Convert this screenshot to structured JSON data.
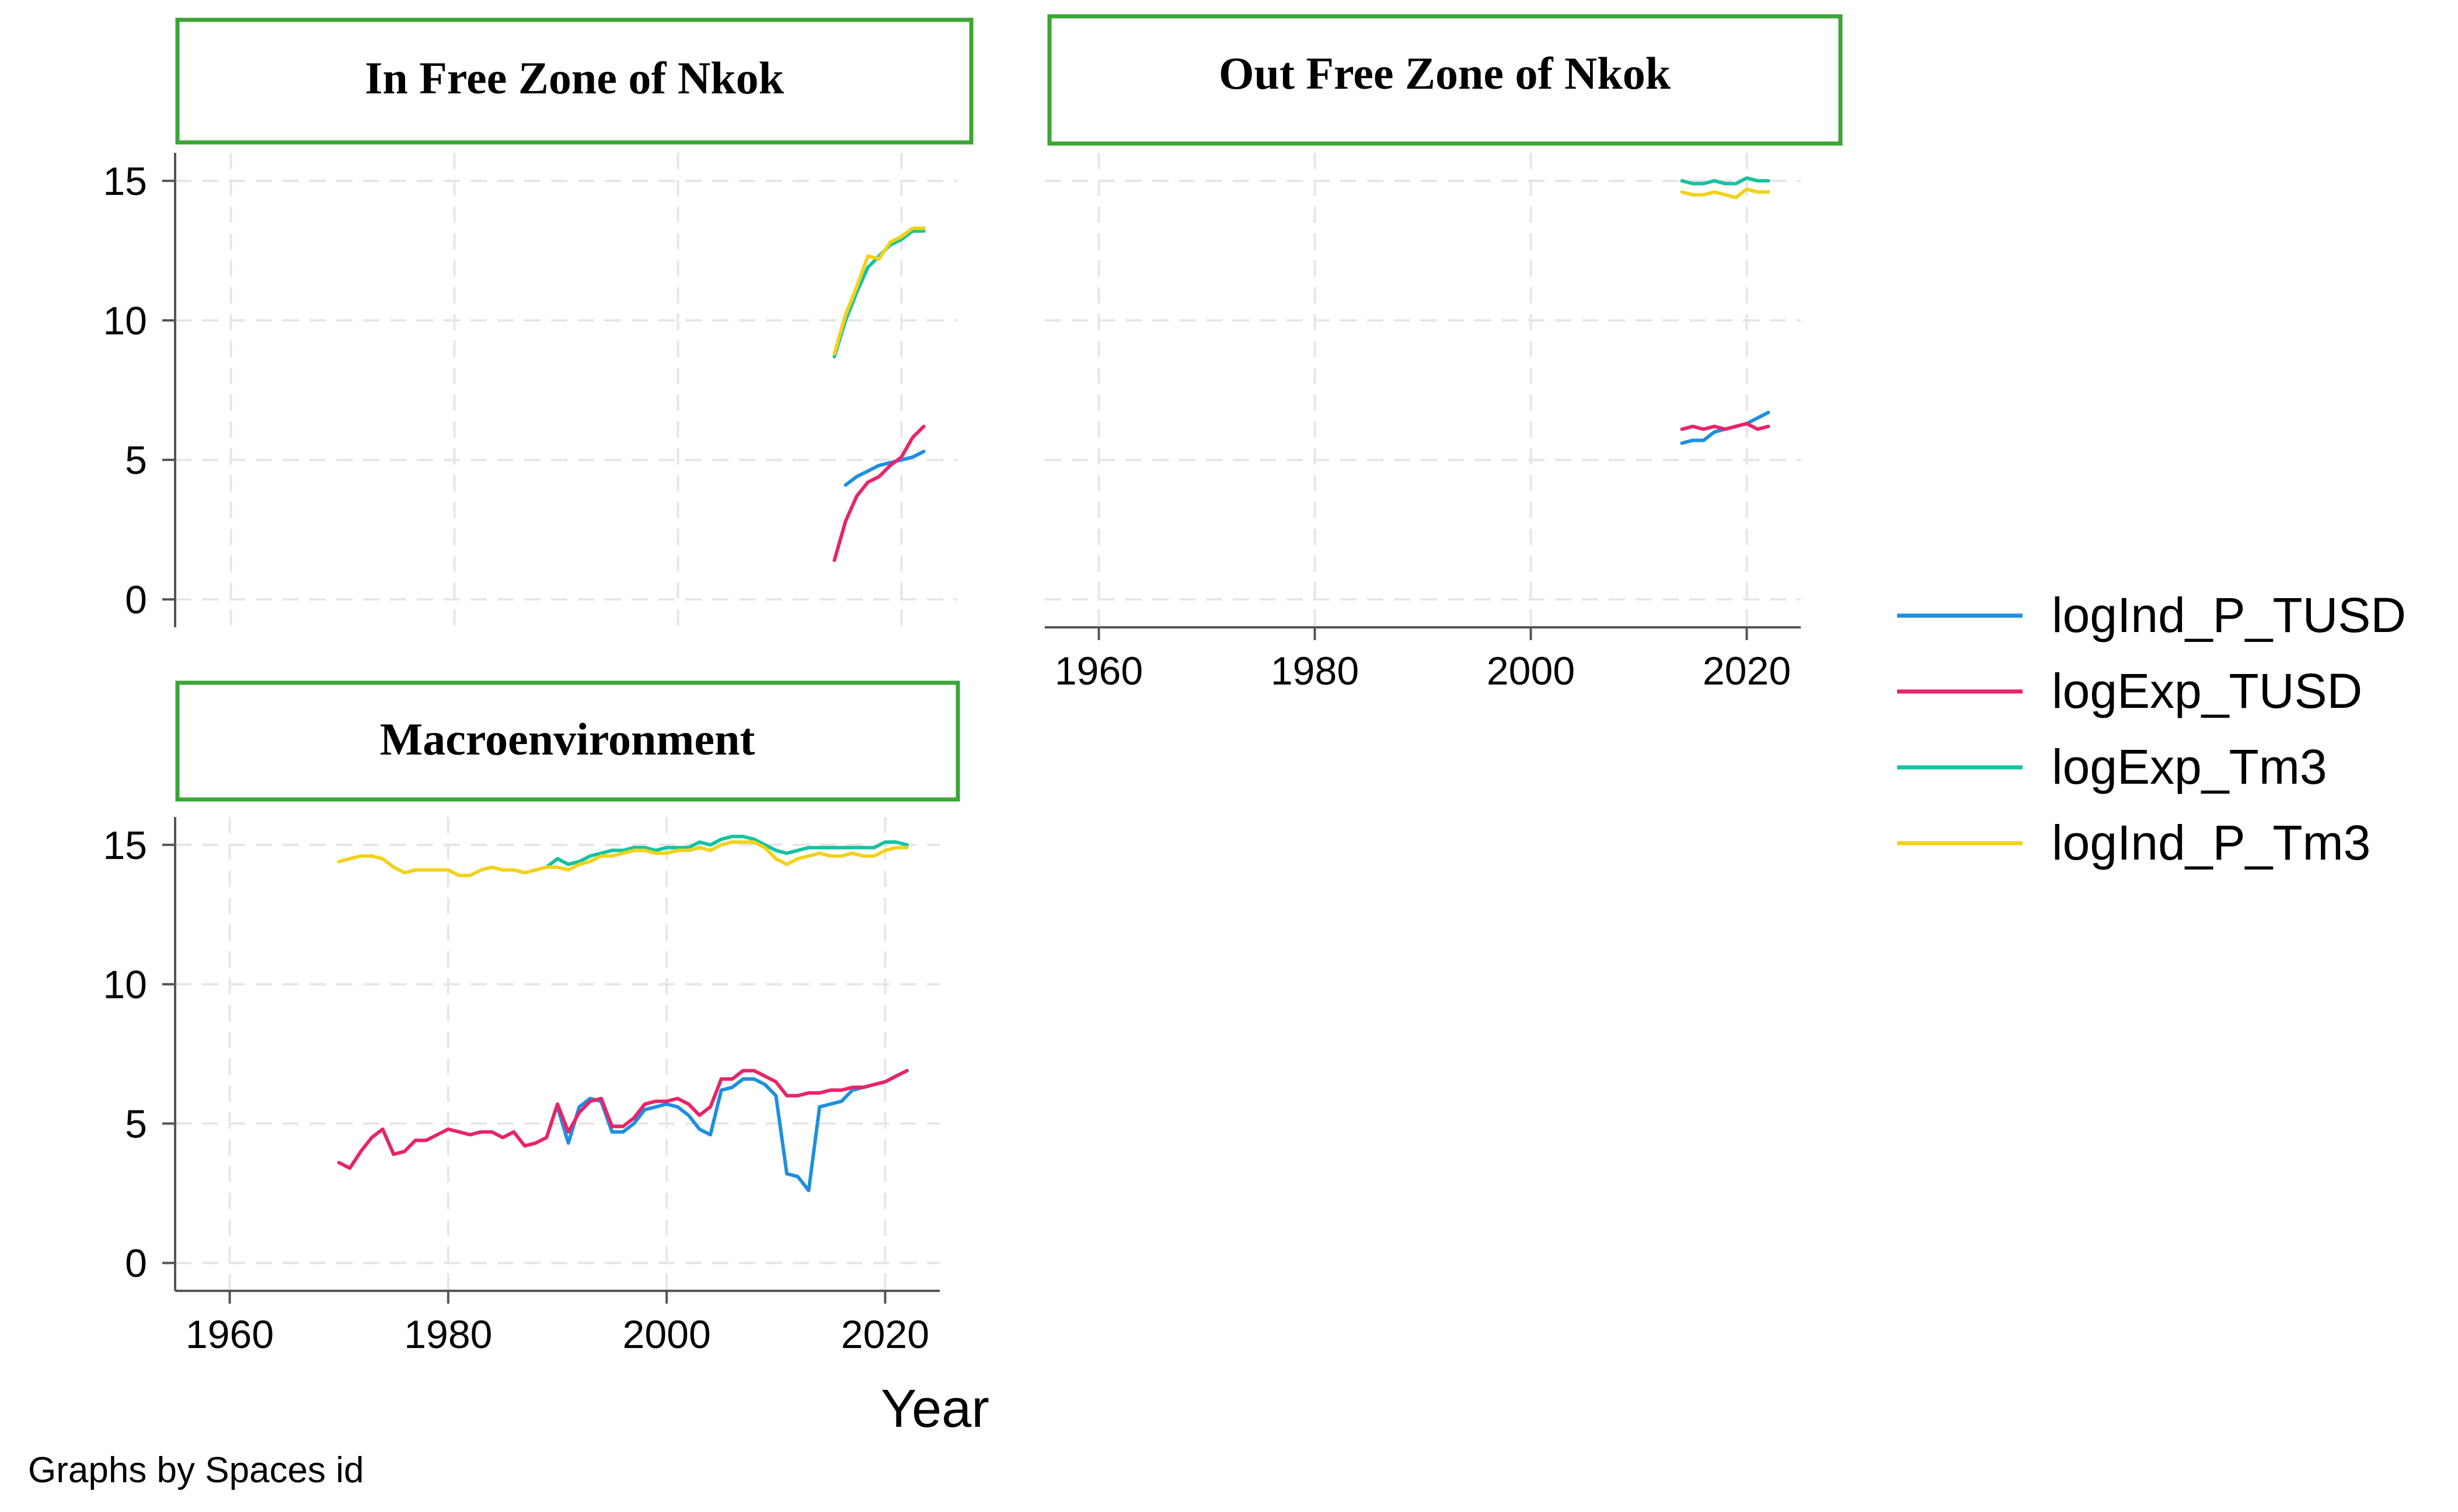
{
  "figure": {
    "note": "Graphs by Spaces id",
    "xlabel": "Year",
    "colors": {
      "background": "#ffffff",
      "grid": "#e6e6e6",
      "axis": "#555555",
      "title_border": "#3aa635"
    }
  },
  "chart_data": [
    {
      "type": "line",
      "title": "In Free Zone of Nkok",
      "xlim": [
        1955,
        2025
      ],
      "ylim": [
        -1,
        16
      ],
      "xticks": [
        1960,
        1980,
        2000,
        2020
      ],
      "yticks": [
        0,
        5,
        10,
        15
      ],
      "show_xaxis": false,
      "show_yaxis": true,
      "series": [
        {
          "name": "logInd_P_TUSD",
          "color": "#1e8fe0",
          "x": [
            2015,
            2016,
            2017,
            2018,
            2019,
            2020,
            2021,
            2022
          ],
          "y": [
            4.1,
            4.4,
            4.6,
            4.8,
            4.9,
            5.0,
            5.1,
            5.3
          ]
        },
        {
          "name": "logExp_TUSD",
          "color": "#e8246a",
          "x": [
            2014,
            2015,
            2016,
            2017,
            2018,
            2019,
            2020,
            2021,
            2022
          ],
          "y": [
            1.4,
            2.8,
            3.7,
            4.2,
            4.4,
            4.8,
            5.1,
            5.8,
            6.2
          ]
        },
        {
          "name": "logExp_Tm3",
          "color": "#16c3a0",
          "x": [
            2014,
            2015,
            2016,
            2017,
            2018,
            2019,
            2020,
            2021,
            2022
          ],
          "y": [
            8.7,
            10.0,
            11.0,
            11.9,
            12.3,
            12.7,
            12.9,
            13.2,
            13.2
          ]
        },
        {
          "name": "logInd_P_Tm3",
          "color": "#f2d21b",
          "x": [
            2014,
            2015,
            2016,
            2017,
            2018,
            2019,
            2020,
            2021,
            2022
          ],
          "y": [
            8.8,
            10.2,
            11.2,
            12.3,
            12.2,
            12.8,
            13.0,
            13.3,
            13.3
          ]
        }
      ]
    },
    {
      "type": "line",
      "title": "Out Free Zone of Nkok",
      "xlim": [
        1955,
        2025
      ],
      "ylim": [
        -1,
        16
      ],
      "xticks": [
        1960,
        1980,
        2000,
        2020
      ],
      "yticks": [
        0,
        5,
        10,
        15
      ],
      "show_xaxis": true,
      "show_yaxis": false,
      "series": [
        {
          "name": "logInd_P_TUSD",
          "color": "#1e8fe0",
          "x": [
            2014,
            2015,
            2016,
            2017,
            2018,
            2019,
            2020,
            2021,
            2022
          ],
          "y": [
            5.6,
            5.7,
            5.7,
            6.0,
            6.1,
            6.2,
            6.3,
            6.5,
            6.7
          ]
        },
        {
          "name": "logExp_TUSD",
          "color": "#e8246a",
          "x": [
            2014,
            2015,
            2016,
            2017,
            2018,
            2019,
            2020,
            2021,
            2022
          ],
          "y": [
            6.1,
            6.2,
            6.1,
            6.2,
            6.1,
            6.2,
            6.3,
            6.1,
            6.2
          ]
        },
        {
          "name": "logExp_Tm3",
          "color": "#16c3a0",
          "x": [
            2014,
            2015,
            2016,
            2017,
            2018,
            2019,
            2020,
            2021,
            2022
          ],
          "y": [
            15.0,
            14.9,
            14.9,
            15.0,
            14.9,
            14.9,
            15.1,
            15.0,
            15.0
          ]
        },
        {
          "name": "logInd_P_Tm3",
          "color": "#f2d21b",
          "x": [
            2014,
            2015,
            2016,
            2017,
            2018,
            2019,
            2020,
            2021,
            2022
          ],
          "y": [
            14.6,
            14.5,
            14.5,
            14.6,
            14.5,
            14.4,
            14.7,
            14.6,
            14.6
          ]
        }
      ]
    },
    {
      "type": "line",
      "title": "Macroenvironment",
      "xlim": [
        1955,
        2025
      ],
      "ylim": [
        -1,
        16
      ],
      "xticks": [
        1960,
        1980,
        2000,
        2020
      ],
      "yticks": [
        0,
        5,
        10,
        15
      ],
      "show_xaxis": true,
      "show_yaxis": true,
      "series": [
        {
          "name": "logInd_P_TUSD",
          "color": "#1e8fe0",
          "x": [
            1990,
            1991,
            1992,
            1993,
            1994,
            1995,
            1996,
            1997,
            1998,
            1999,
            2000,
            2001,
            2002,
            2003,
            2004,
            2005,
            2006,
            2007,
            2008,
            2009,
            2010,
            2011,
            2012,
            2013,
            2014,
            2015,
            2016,
            2017,
            2018,
            2019,
            2020,
            2021,
            2022
          ],
          "y": [
            5.6,
            4.3,
            5.6,
            5.9,
            5.8,
            4.7,
            4.7,
            5.0,
            5.5,
            5.6,
            5.7,
            5.6,
            5.3,
            4.8,
            4.6,
            6.2,
            6.3,
            6.6,
            6.6,
            6.4,
            6.0,
            3.2,
            3.1,
            2.6,
            5.6,
            5.7,
            5.8,
            6.2,
            6.3,
            6.4,
            6.5,
            6.7,
            6.9
          ]
        },
        {
          "name": "logExp_TUSD",
          "color": "#e8246a",
          "x": [
            1970,
            1971,
            1972,
            1973,
            1974,
            1975,
            1976,
            1977,
            1978,
            1979,
            1980,
            1981,
            1982,
            1983,
            1984,
            1985,
            1986,
            1987,
            1988,
            1989,
            1990,
            1991,
            1992,
            1993,
            1994,
            1995,
            1996,
            1997,
            1998,
            1999,
            2000,
            2001,
            2002,
            2003,
            2004,
            2005,
            2006,
            2007,
            2008,
            2009,
            2010,
            2011,
            2012,
            2013,
            2014,
            2015,
            2016,
            2017,
            2018,
            2019,
            2020,
            2021,
            2022
          ],
          "y": [
            3.6,
            3.4,
            4.0,
            4.5,
            4.8,
            3.9,
            4.0,
            4.4,
            4.4,
            4.6,
            4.8,
            4.7,
            4.6,
            4.7,
            4.7,
            4.5,
            4.7,
            4.2,
            4.3,
            4.5,
            5.7,
            4.7,
            5.4,
            5.8,
            5.9,
            4.9,
            4.9,
            5.2,
            5.7,
            5.8,
            5.8,
            5.9,
            5.7,
            5.3,
            5.6,
            6.6,
            6.6,
            6.9,
            6.9,
            6.7,
            6.5,
            6.0,
            6.0,
            6.1,
            6.1,
            6.2,
            6.2,
            6.3,
            6.3,
            6.4,
            6.5,
            6.7,
            6.9
          ]
        },
        {
          "name": "logExp_Tm3",
          "color": "#16c3a0",
          "x": [
            1989,
            1990,
            1991,
            1992,
            1993,
            1994,
            1995,
            1996,
            1997,
            1998,
            1999,
            2000,
            2001,
            2002,
            2003,
            2004,
            2005,
            2006,
            2007,
            2008,
            2009,
            2010,
            2011,
            2012,
            2013,
            2014,
            2015,
            2016,
            2017,
            2018,
            2019,
            2020,
            2021,
            2022
          ],
          "y": [
            14.2,
            14.5,
            14.3,
            14.4,
            14.6,
            14.7,
            14.8,
            14.8,
            14.9,
            14.9,
            14.8,
            14.9,
            14.9,
            14.9,
            15.1,
            15.0,
            15.2,
            15.3,
            15.3,
            15.2,
            15.0,
            14.8,
            14.7,
            14.8,
            14.9,
            14.9,
            14.9,
            14.9,
            14.9,
            14.9,
            14.9,
            15.1,
            15.1,
            15.0
          ]
        },
        {
          "name": "logInd_P_Tm3",
          "color": "#f2d21b",
          "x": [
            1970,
            1971,
            1972,
            1973,
            1974,
            1975,
            1976,
            1977,
            1978,
            1979,
            1980,
            1981,
            1982,
            1983,
            1984,
            1985,
            1986,
            1987,
            1988,
            1989,
            1990,
            1991,
            1992,
            1993,
            1994,
            1995,
            1996,
            1997,
            1998,
            1999,
            2000,
            2001,
            2002,
            2003,
            2004,
            2005,
            2006,
            2007,
            2008,
            2009,
            2010,
            2011,
            2012,
            2013,
            2014,
            2015,
            2016,
            2017,
            2018,
            2019,
            2020,
            2021,
            2022
          ],
          "y": [
            14.4,
            14.5,
            14.6,
            14.6,
            14.5,
            14.2,
            14.0,
            14.1,
            14.1,
            14.1,
            14.1,
            13.9,
            13.9,
            14.1,
            14.2,
            14.1,
            14.1,
            14.0,
            14.1,
            14.2,
            14.2,
            14.1,
            14.3,
            14.4,
            14.6,
            14.6,
            14.7,
            14.8,
            14.8,
            14.7,
            14.7,
            14.8,
            14.8,
            14.9,
            14.8,
            15.0,
            15.1,
            15.1,
            15.1,
            14.9,
            14.5,
            14.3,
            14.5,
            14.6,
            14.7,
            14.6,
            14.6,
            14.7,
            14.6,
            14.6,
            14.8,
            14.9,
            14.9
          ]
        }
      ]
    }
  ]
}
